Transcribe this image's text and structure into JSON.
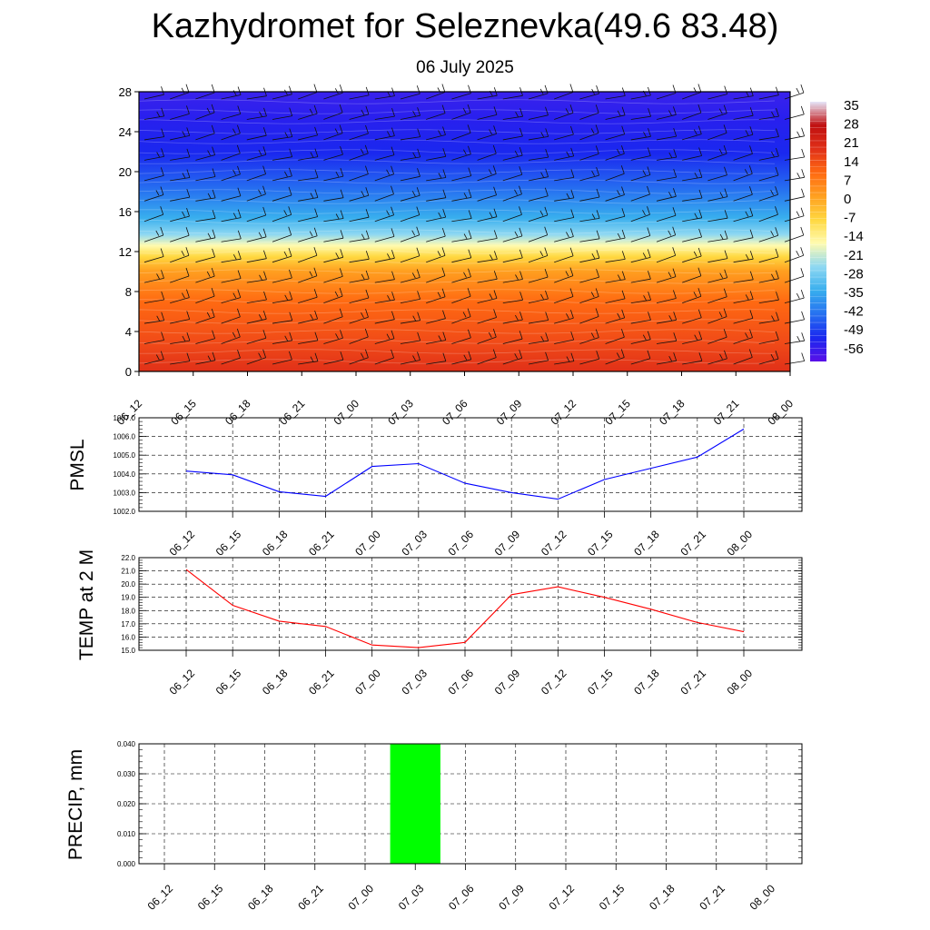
{
  "header": {
    "title": "Kazhydromet for Seleznevka(49.6 83.48)",
    "subtitle": "06 July 2025"
  },
  "chart_data": [
    {
      "type": "heatmap",
      "x_categories": [
        "06_12",
        "06_15",
        "06_18",
        "06_21",
        "07_00",
        "07_03",
        "07_06",
        "07_09",
        "07_12",
        "07_15",
        "07_18",
        "07_21",
        "08_00"
      ],
      "ylim": [
        0,
        28
      ],
      "y_ticks": [
        "0",
        "4",
        "8",
        "12",
        "16",
        "20",
        "24",
        "28"
      ],
      "colorbar_labels": [
        "35",
        "28",
        "21",
        "14",
        "7",
        "0",
        "-7",
        "-14",
        "-21",
        "-28",
        "-35",
        "-42",
        "-49",
        "-56"
      ],
      "color_scale": [
        "#e6e6fa",
        "#c01010",
        "#e03018",
        "#ff6a12",
        "#ffa020",
        "#ffd840",
        "#fffbb0",
        "#8ed8f2",
        "#38aeee",
        "#2670f0",
        "#1a28ef",
        "#5a10e8"
      ],
      "wind_barbs": true
    },
    {
      "type": "line",
      "ylabel": "PMSL",
      "categories": [
        "06_12",
        "06_15",
        "06_18",
        "06_21",
        "07_00",
        "07_03",
        "07_06",
        "07_09",
        "07_12",
        "07_15",
        "07_18",
        "07_21",
        "08_00"
      ],
      "series": [
        {
          "values": [
            1004.15,
            1003.95,
            1003.05,
            1002.8,
            1004.4,
            1004.55,
            1003.5,
            1003.0,
            1002.65,
            1003.7,
            1004.3,
            1004.9,
            1006.4
          ],
          "color": "#0000ff"
        }
      ],
      "ylim": [
        1002.0,
        1007.0
      ],
      "y_ticks": [
        "1002.0",
        "1003.0",
        "1004.0",
        "1005.0",
        "1006.0",
        "1007.0"
      ],
      "grid": true
    },
    {
      "type": "line",
      "ylabel": "TEMP at 2 M",
      "categories": [
        "06_12",
        "06_15",
        "06_18",
        "06_21",
        "07_00",
        "07_03",
        "07_06",
        "07_09",
        "07_12",
        "07_15",
        "07_18",
        "07_21",
        "08_00"
      ],
      "series": [
        {
          "values": [
            21.1,
            18.4,
            17.2,
            16.8,
            15.4,
            15.2,
            15.6,
            19.2,
            19.8,
            19.0,
            18.1,
            17.1,
            16.4
          ],
          "color": "#ff0000"
        }
      ],
      "ylim": [
        15.0,
        22.0
      ],
      "y_ticks": [
        "15.0",
        "16.0",
        "17.0",
        "18.0",
        "19.0",
        "20.0",
        "21.0",
        "22.0"
      ],
      "grid": true
    },
    {
      "type": "bar",
      "ylabel": "PRECIP, mm",
      "categories": [
        "06_12",
        "06_15",
        "06_18",
        "06_21",
        "07_00",
        "07_03",
        "07_06",
        "07_09",
        "07_12",
        "07_15",
        "07_18",
        "07_21",
        "08_00"
      ],
      "values": [
        0,
        0,
        0,
        0,
        0,
        0.04,
        0,
        0,
        0,
        0,
        0,
        0,
        0
      ],
      "color": "#00ff00",
      "ylim": [
        0,
        0.04
      ],
      "y_ticks": [
        "0.000",
        "0.010",
        "0.020",
        "0.030",
        "0.040"
      ],
      "grid": true
    }
  ]
}
